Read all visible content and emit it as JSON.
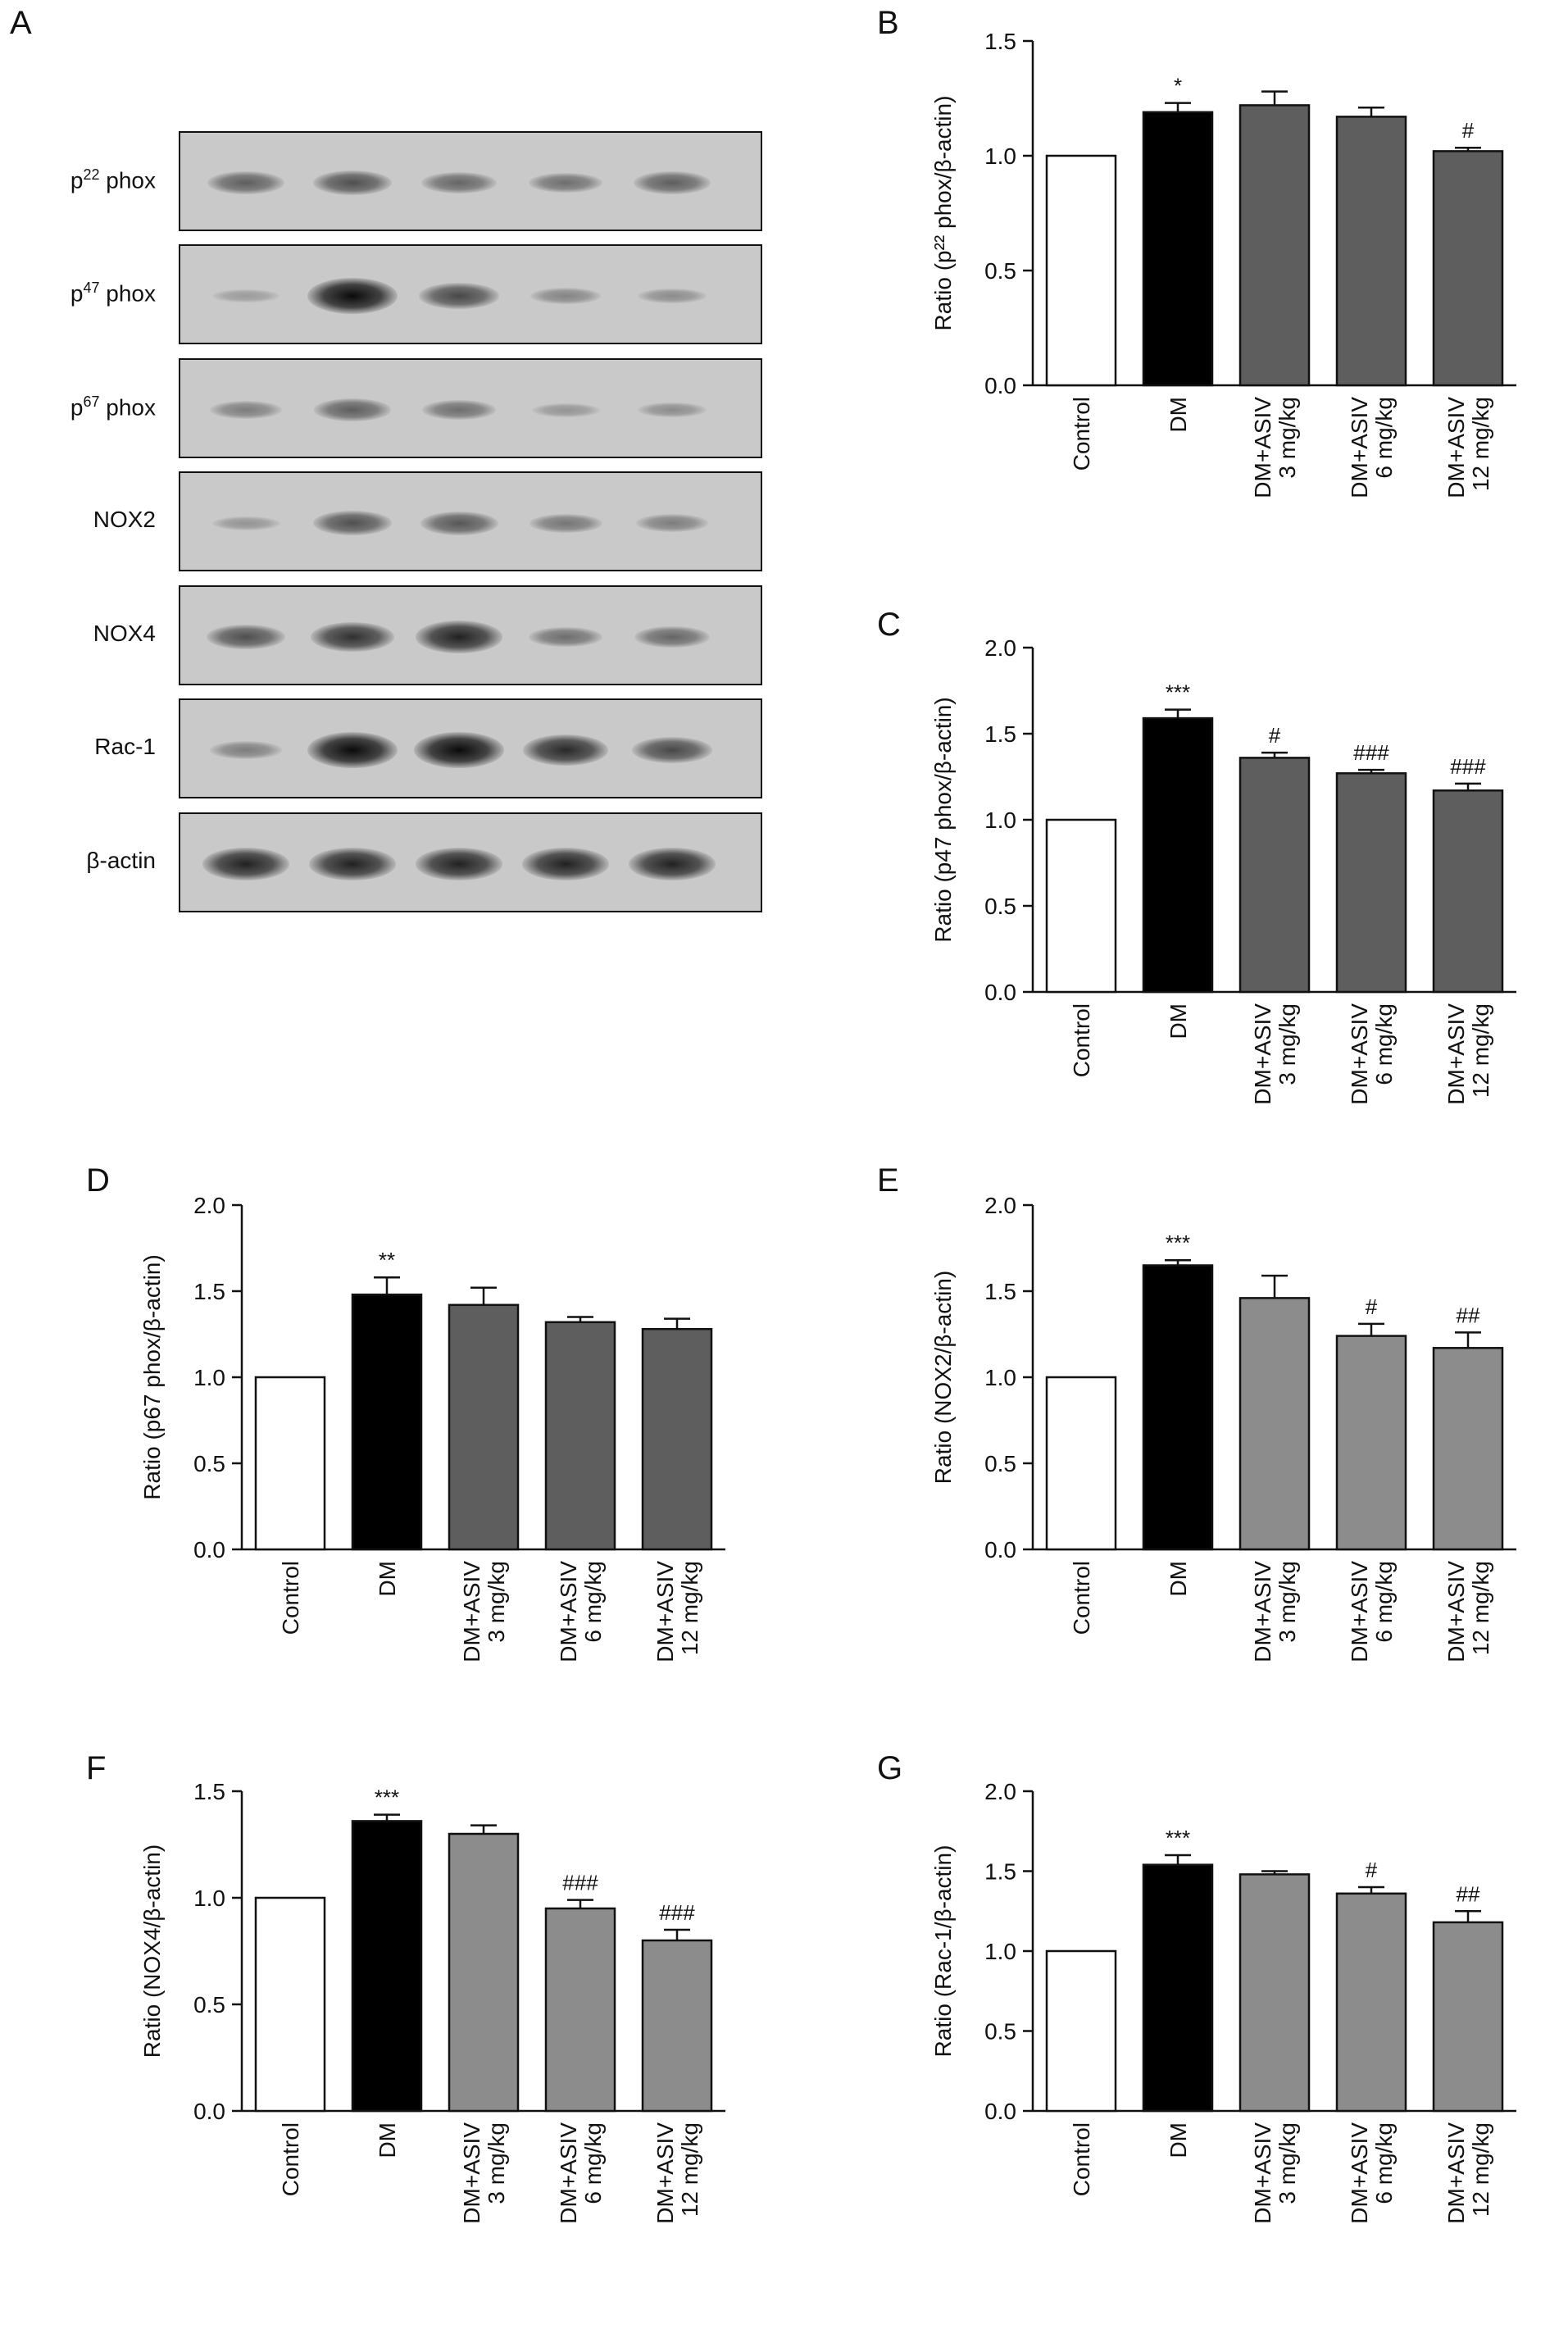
{
  "panels": {
    "A": "A",
    "B": "B",
    "C": "C",
    "D": "D",
    "E": "E",
    "F": "F",
    "G": "G"
  },
  "blot": {
    "rows": [
      {
        "label_main": "p",
        "label_sup": "22",
        "label_tail": " phox",
        "intensities": [
          0.45,
          0.55,
          0.4,
          0.35,
          0.45
        ]
      },
      {
        "label_main": "p",
        "label_sup": "47",
        "label_tail": " phox",
        "intensities": [
          0.05,
          1.0,
          0.6,
          0.2,
          0.15
        ]
      },
      {
        "label_main": "p",
        "label_sup": "67",
        "label_tail": " phox",
        "intensities": [
          0.25,
          0.45,
          0.35,
          0.1,
          0.15
        ]
      },
      {
        "label_main": "NOX2",
        "label_sup": "",
        "label_tail": "",
        "intensities": [
          0.1,
          0.55,
          0.5,
          0.3,
          0.25
        ]
      },
      {
        "label_main": "NOX4",
        "label_sup": "",
        "label_tail": "",
        "intensities": [
          0.55,
          0.75,
          0.85,
          0.35,
          0.4
        ]
      },
      {
        "label_main": "Rac-1",
        "label_sup": "",
        "label_tail": "",
        "intensities": [
          0.25,
          1.0,
          1.0,
          0.8,
          0.6
        ]
      },
      {
        "label_main": "β-actin",
        "label_sup": "",
        "label_tail": "",
        "intensities": [
          0.85,
          0.85,
          0.85,
          0.85,
          0.85
        ]
      }
    ]
  },
  "chart_data": [
    {
      "panel": "B",
      "type": "bar",
      "categories": [
        "Control",
        "DM",
        "DM+ASIV\n3 mg/kg",
        "DM+ASIV\n6 mg/kg",
        "DM+ASIV\n12 mg/kg"
      ],
      "values": [
        1.0,
        1.19,
        1.22,
        1.17,
        1.02
      ],
      "errors": [
        0,
        0.04,
        0.06,
        0.04,
        0.015
      ],
      "annotations": [
        "",
        "*",
        "",
        "",
        "#"
      ],
      "ylabel": "Ratio (p²² phox/β-actin)",
      "ylim": [
        0,
        1.5
      ],
      "yticks": [
        "0.0",
        "0.5",
        "1.0",
        "1.5"
      ],
      "colors": [
        "#ffffff",
        "#000000",
        "#5e5e5e",
        "#5e5e5e",
        "#5e5e5e"
      ]
    },
    {
      "panel": "C",
      "type": "bar",
      "categories": [
        "Control",
        "DM",
        "DM+ASIV\n3 mg/kg",
        "DM+ASIV\n6 mg/kg",
        "DM+ASIV\n12 mg/kg"
      ],
      "values": [
        1.0,
        1.59,
        1.36,
        1.27,
        1.17
      ],
      "errors": [
        0,
        0.05,
        0.03,
        0.02,
        0.04
      ],
      "annotations": [
        "",
        "***",
        "#",
        "###",
        "###"
      ],
      "ylabel": "Ratio (p47 phox/β-actin)",
      "ylim": [
        0,
        2.0
      ],
      "yticks": [
        "0.0",
        "0.5",
        "1.0",
        "1.5",
        "2.0"
      ],
      "colors": [
        "#ffffff",
        "#000000",
        "#5e5e5e",
        "#5e5e5e",
        "#5e5e5e"
      ]
    },
    {
      "panel": "D",
      "type": "bar",
      "categories": [
        "Control",
        "DM",
        "DM+ASIV\n3 mg/kg",
        "DM+ASIV\n6 mg/kg",
        "DM+ASIV\n12 mg/kg"
      ],
      "values": [
        1.0,
        1.48,
        1.42,
        1.32,
        1.28
      ],
      "errors": [
        0,
        0.1,
        0.1,
        0.03,
        0.06
      ],
      "annotations": [
        "",
        "**",
        "",
        "",
        ""
      ],
      "ylabel": "Ratio (p67 phox/β-actin)",
      "ylim": [
        0,
        2.0
      ],
      "yticks": [
        "0.0",
        "0.5",
        "1.0",
        "1.5",
        "2.0"
      ],
      "colors": [
        "#ffffff",
        "#000000",
        "#5e5e5e",
        "#5e5e5e",
        "#5e5e5e"
      ]
    },
    {
      "panel": "E",
      "type": "bar",
      "categories": [
        "Control",
        "DM",
        "DM+ASIV\n3 mg/kg",
        "DM+ASIV\n6 mg/kg",
        "DM+ASIV\n12 mg/kg"
      ],
      "values": [
        1.0,
        1.65,
        1.46,
        1.24,
        1.17
      ],
      "errors": [
        0,
        0.03,
        0.13,
        0.07,
        0.09
      ],
      "annotations": [
        "",
        "***",
        "",
        "#",
        "##"
      ],
      "ylabel": "Ratio (NOX2/β-actin)",
      "ylim": [
        0,
        2.0
      ],
      "yticks": [
        "0.0",
        "0.5",
        "1.0",
        "1.5",
        "2.0"
      ],
      "colors": [
        "#ffffff",
        "#000000",
        "#8c8c8c",
        "#8c8c8c",
        "#8c8c8c"
      ]
    },
    {
      "panel": "F",
      "type": "bar",
      "categories": [
        "Control",
        "DM",
        "DM+ASIV\n3 mg/kg",
        "DM+ASIV\n6 mg/kg",
        "DM+ASIV\n12 mg/kg"
      ],
      "values": [
        1.0,
        1.36,
        1.3,
        0.95,
        0.8
      ],
      "errors": [
        0,
        0.03,
        0.04,
        0.04,
        0.05
      ],
      "annotations": [
        "",
        "***",
        "",
        "###",
        "###"
      ],
      "ylabel": "Ratio (NOX4/β-actin)",
      "ylim": [
        0,
        1.5
      ],
      "yticks": [
        "0.0",
        "0.5",
        "1.0",
        "1.5"
      ],
      "colors": [
        "#ffffff",
        "#000000",
        "#8c8c8c",
        "#8c8c8c",
        "#8c8c8c"
      ]
    },
    {
      "panel": "G",
      "type": "bar",
      "categories": [
        "Control",
        "DM",
        "DM+ASIV\n3 mg/kg",
        "DM+ASIV\n6 mg/kg",
        "DM+ASIV\n12 mg/kg"
      ],
      "values": [
        1.0,
        1.54,
        1.48,
        1.36,
        1.18
      ],
      "errors": [
        0,
        0.06,
        0.02,
        0.04,
        0.07
      ],
      "annotations": [
        "",
        "***",
        "",
        "#",
        "##"
      ],
      "ylabel": "Ratio (Rac-1/β-actin)",
      "ylim": [
        0,
        2.0
      ],
      "yticks": [
        "0.0",
        "0.5",
        "1.0",
        "1.5",
        "2.0"
      ],
      "colors": [
        "#ffffff",
        "#000000",
        "#8c8c8c",
        "#8c8c8c",
        "#8c8c8c"
      ]
    }
  ]
}
